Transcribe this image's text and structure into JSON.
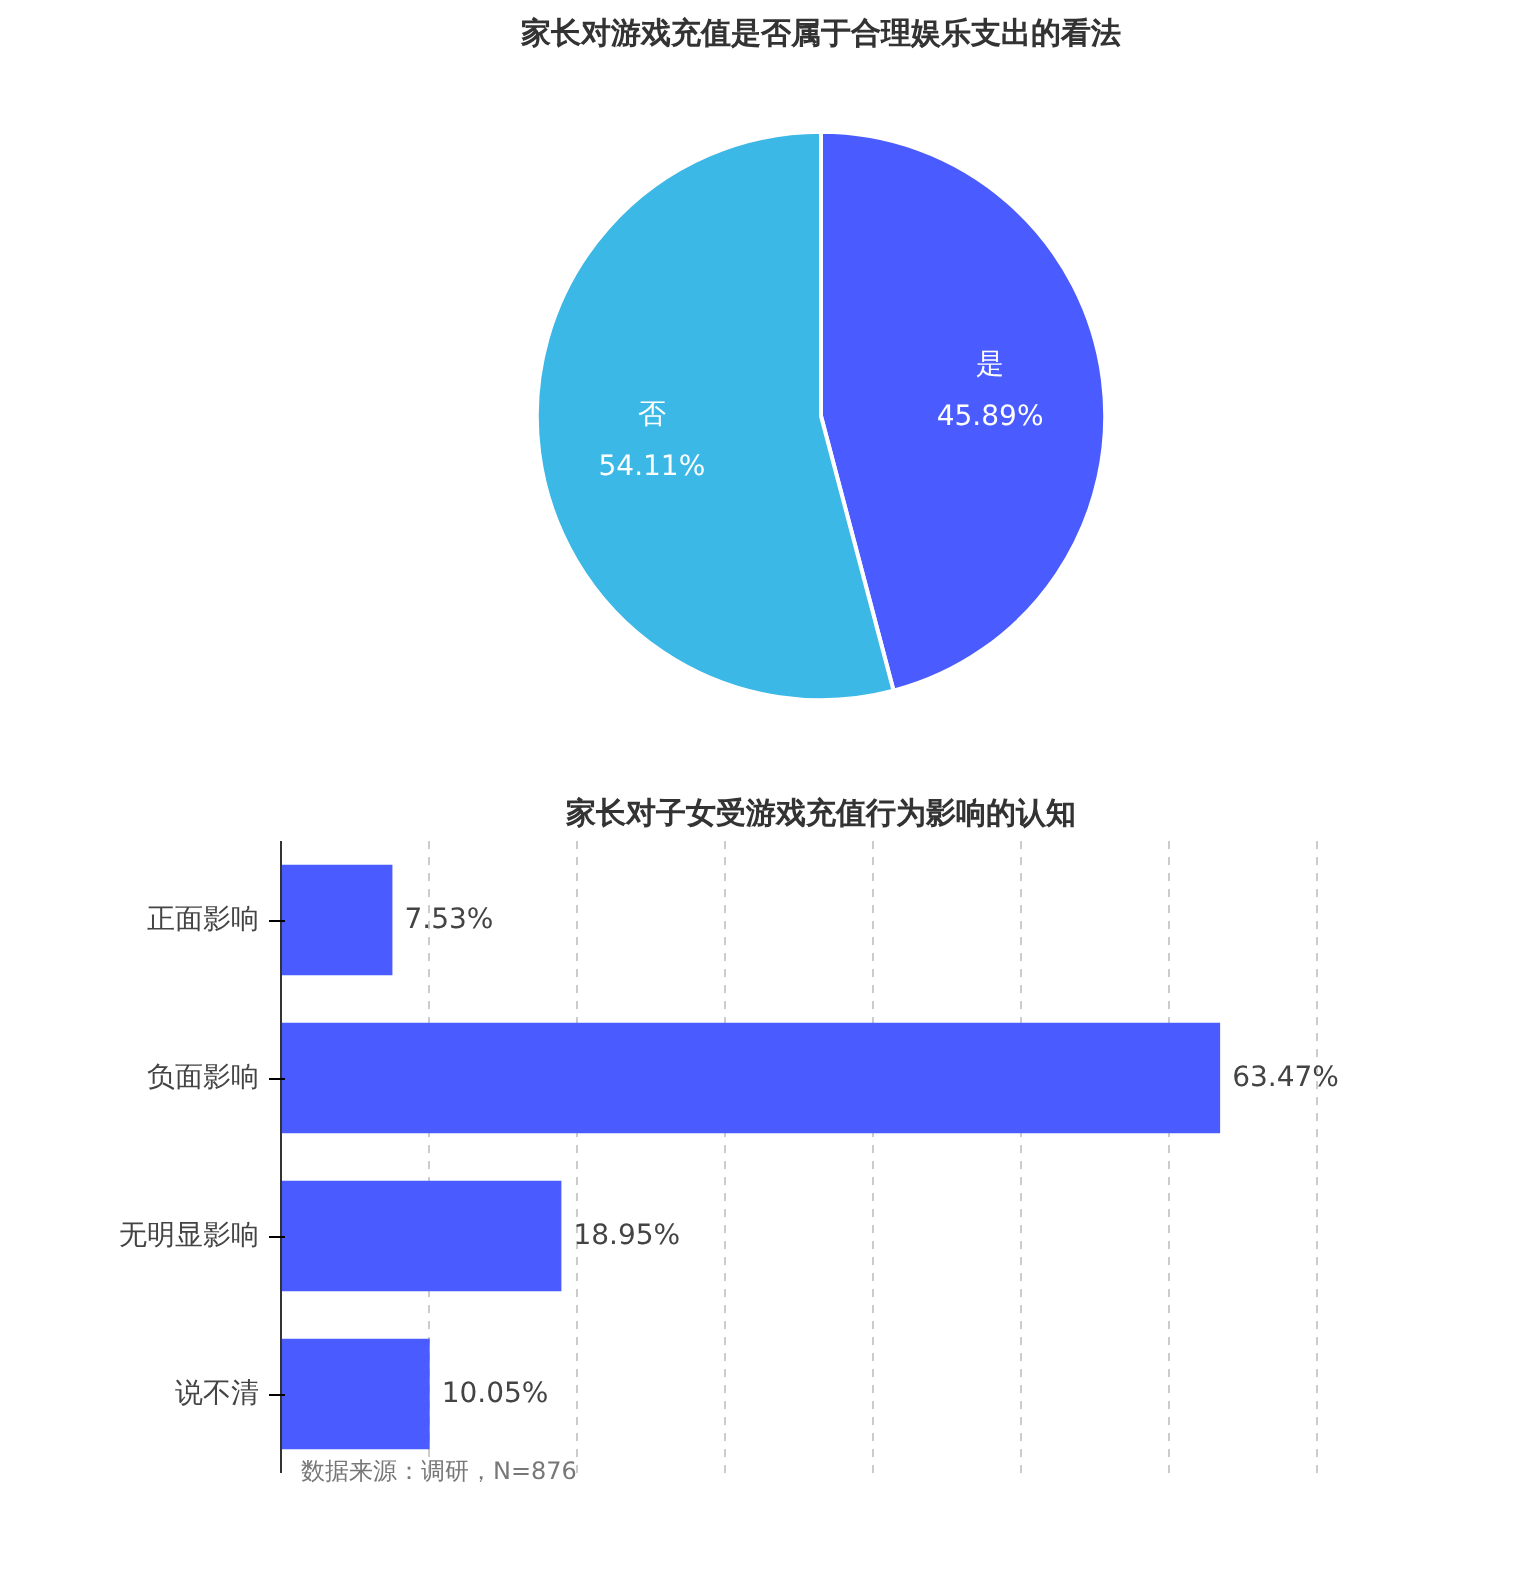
{
  "chart_data": [
    {
      "type": "pie",
      "title": "家长对游戏充值是否属于合理娱乐支出的看法",
      "categories": [
        "是",
        "否"
      ],
      "values": [
        45.89,
        54.11
      ],
      "colors": [
        "#4a5cff",
        "#3bb8e6"
      ],
      "value_labels": [
        "45.89%",
        "54.11%"
      ]
    },
    {
      "type": "bar",
      "title": "家长对子女受游戏充值行为影响的认知",
      "orientation": "horizontal",
      "categories": [
        "正面影响",
        "负面影响",
        "无明显影响",
        "说不清"
      ],
      "values": [
        7.53,
        63.47,
        18.95,
        10.05
      ],
      "color": "#4a5cff",
      "value_labels": [
        "7.53%",
        "63.47%",
        "18.95%",
        "10.05%"
      ],
      "grid": "x",
      "tick_labels": "y",
      "annotations": [
        "数据来源：调研，N=876"
      ]
    }
  ]
}
